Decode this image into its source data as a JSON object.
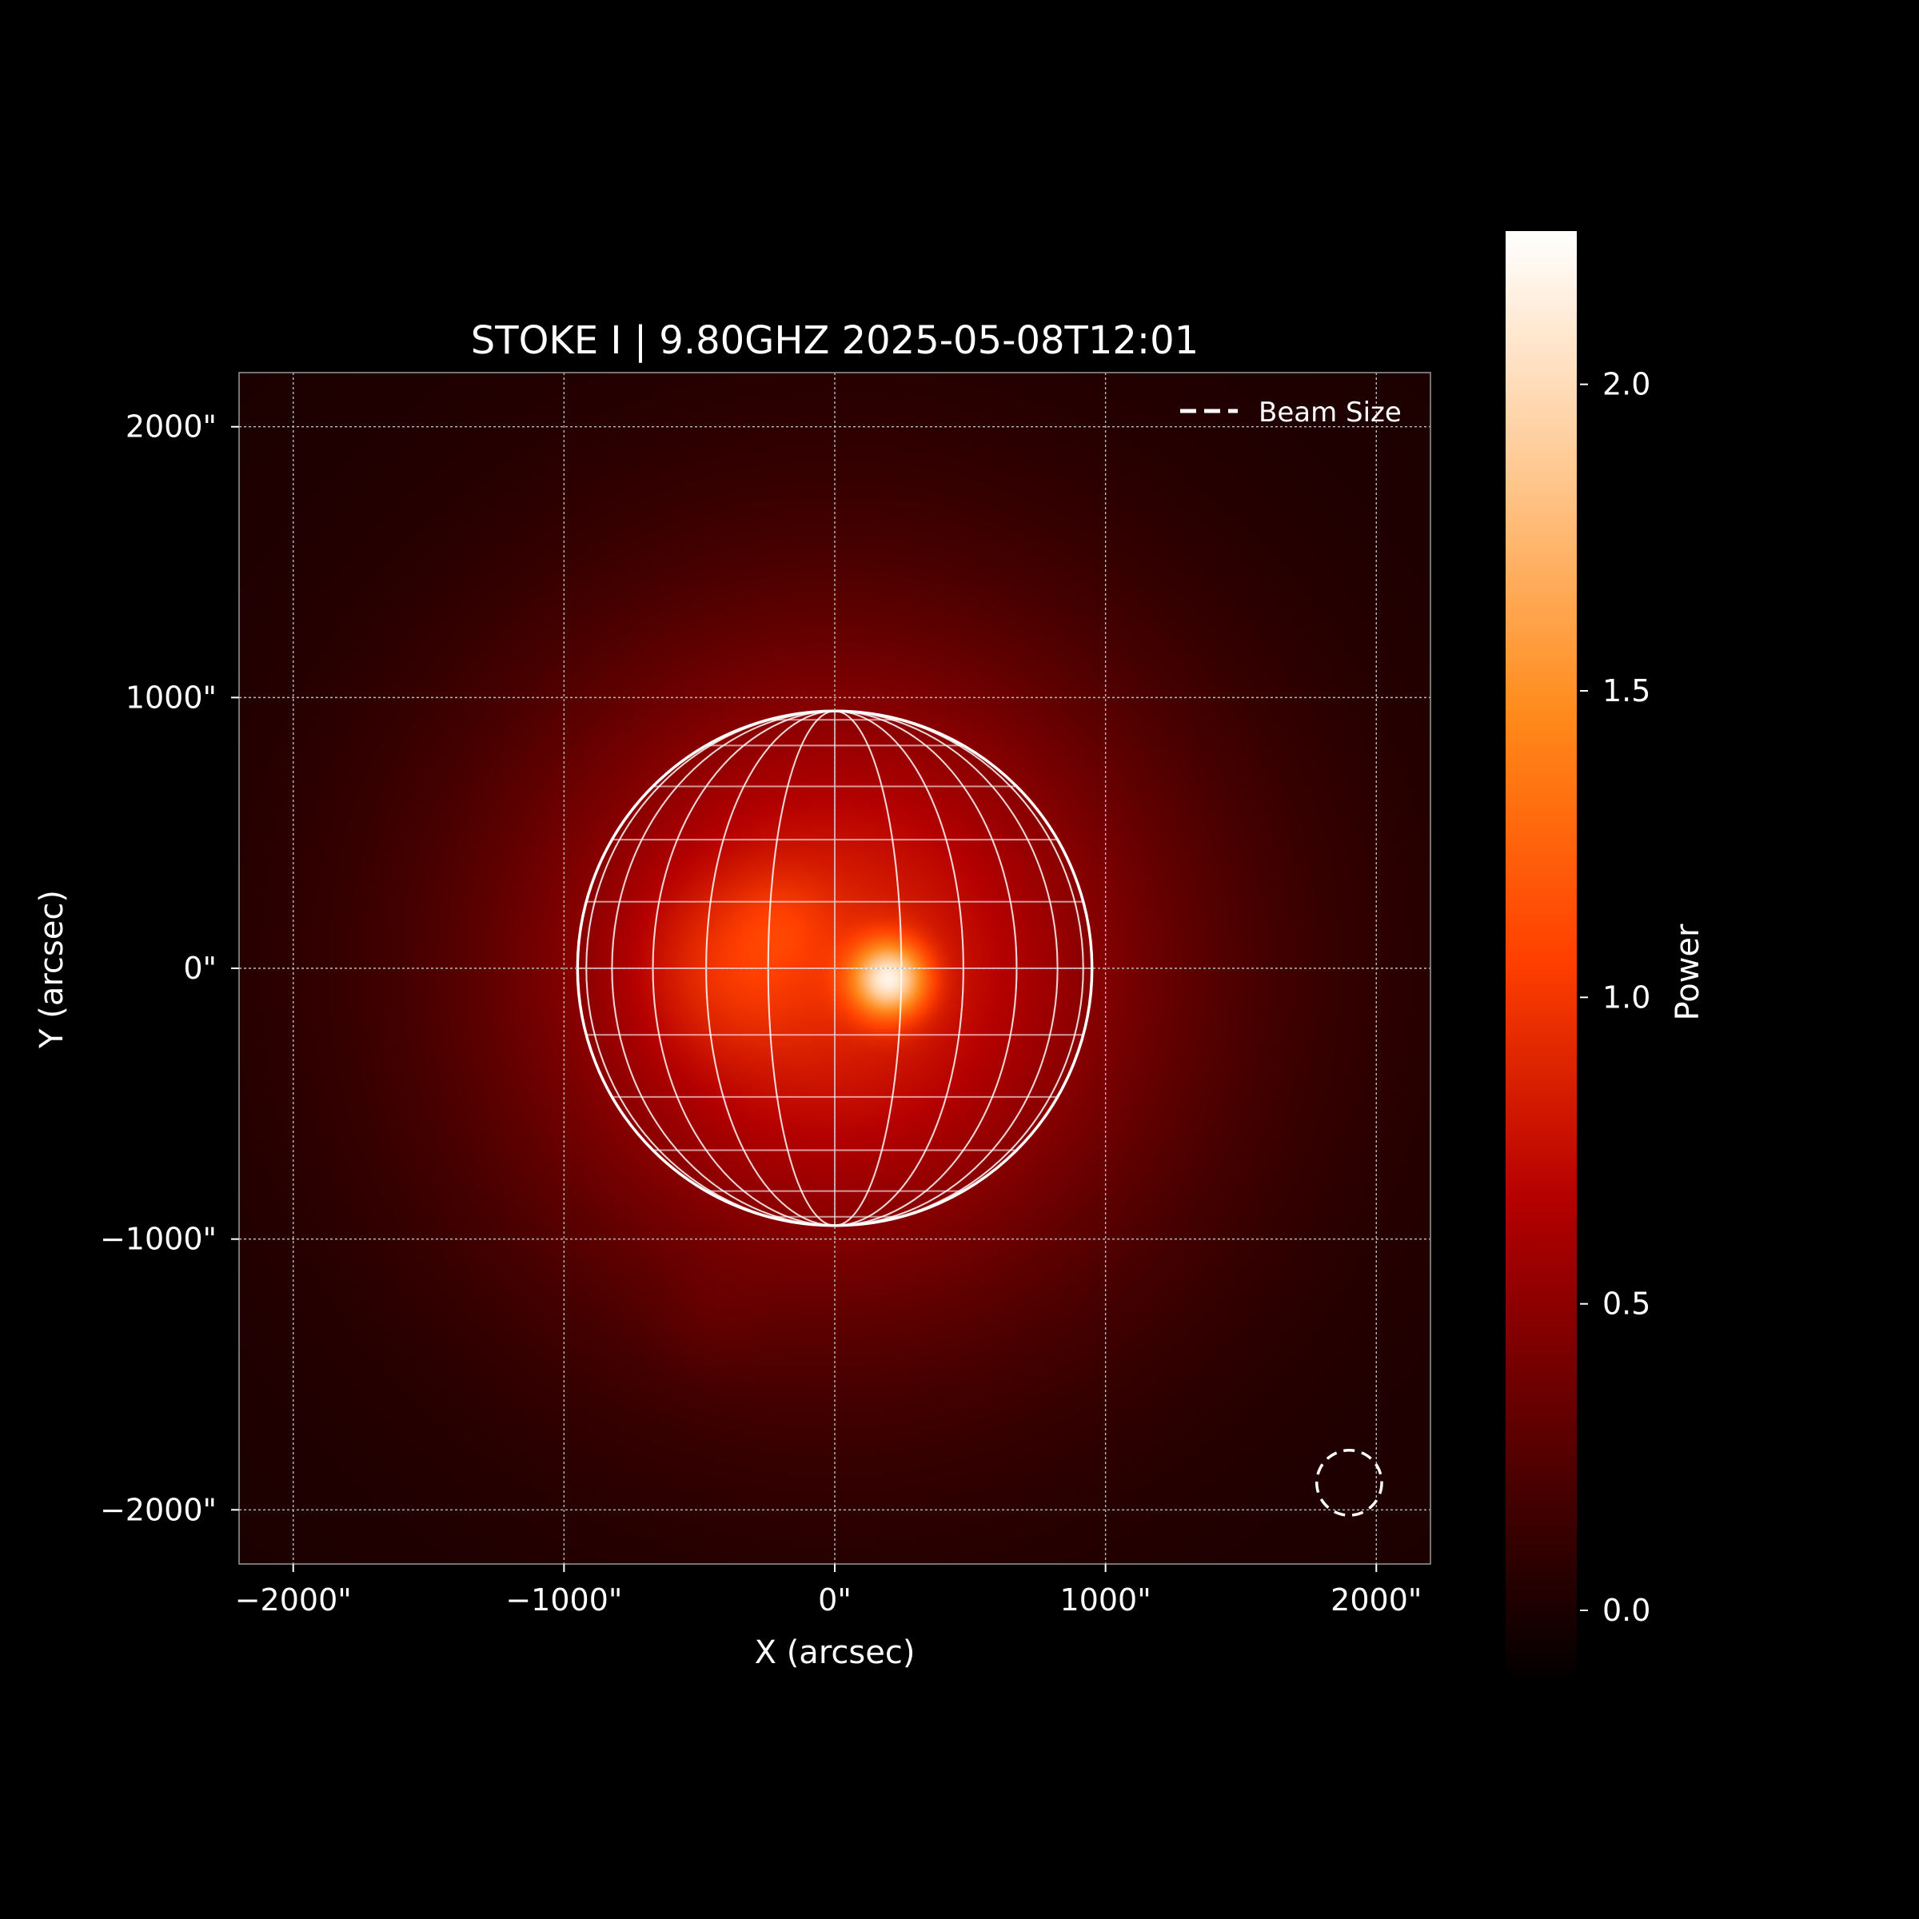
{
  "chart_data": {
    "type": "heatmap",
    "title": "STOKE I | 9.80GHZ 2025-05-08T12:01",
    "xlabel": "X (arcsec)",
    "ylabel": "Y (arcsec)",
    "xlim": [
      -2200,
      2200
    ],
    "ylim": [
      -2200,
      2200
    ],
    "x_ticks": [
      -2000,
      -1000,
      0,
      1000,
      2000
    ],
    "y_ticks": [
      -2000,
      -1000,
      0,
      1000,
      2000
    ],
    "x_tick_labels": [
      "−2000\"",
      "−1000\"",
      "0\"",
      "1000\"",
      "2000\""
    ],
    "y_tick_labels": [
      "−2000\"",
      "−1000\"",
      "0\"",
      "1000\"",
      "2000\""
    ],
    "grid": true,
    "legend": {
      "placement": "top-right",
      "entries": [
        {
          "label": "Beam Size",
          "style": "dashed",
          "color": "#ffffff"
        }
      ]
    },
    "colorbar": {
      "label": "Power",
      "range": [
        -0.12,
        2.25
      ],
      "ticks": [
        0.0,
        0.5,
        1.0,
        1.5,
        2.0
      ],
      "tick_labels": [
        "0.0",
        "0.5",
        "1.0",
        "1.5",
        "2.0"
      ],
      "colormap": "gist_heat",
      "colors": [
        "#000000",
        "#5a0000",
        "#b40000",
        "#ff4000",
        "#ff8a1a",
        "#ffc890",
        "#ffffff"
      ]
    },
    "solar_disk": {
      "center_x": 0,
      "center_y": 0,
      "radius": 950,
      "meridian_step_deg": 15,
      "parallel_step_deg": 15,
      "color": "#ffffff"
    },
    "beam": {
      "center_x": 1900,
      "center_y": -1900,
      "radius": 120,
      "style": "dashed"
    },
    "sources": [
      {
        "x": 0,
        "y": 0,
        "sigma": 960,
        "amplitude": 0.72
      },
      {
        "x": 0,
        "y": 0,
        "sigma": 520,
        "amplitude": 0.18
      },
      {
        "x": 200,
        "y": -40,
        "sigma": 95,
        "amplitude": 1.3
      },
      {
        "x": -400,
        "y": 0,
        "sigma": 230,
        "amplitude": 0.22
      },
      {
        "x": -200,
        "y": 180,
        "sigma": 130,
        "amplitude": 0.12
      },
      {
        "x": -450,
        "y": -1300,
        "sigma": 150,
        "amplitude": 0.05
      }
    ]
  }
}
